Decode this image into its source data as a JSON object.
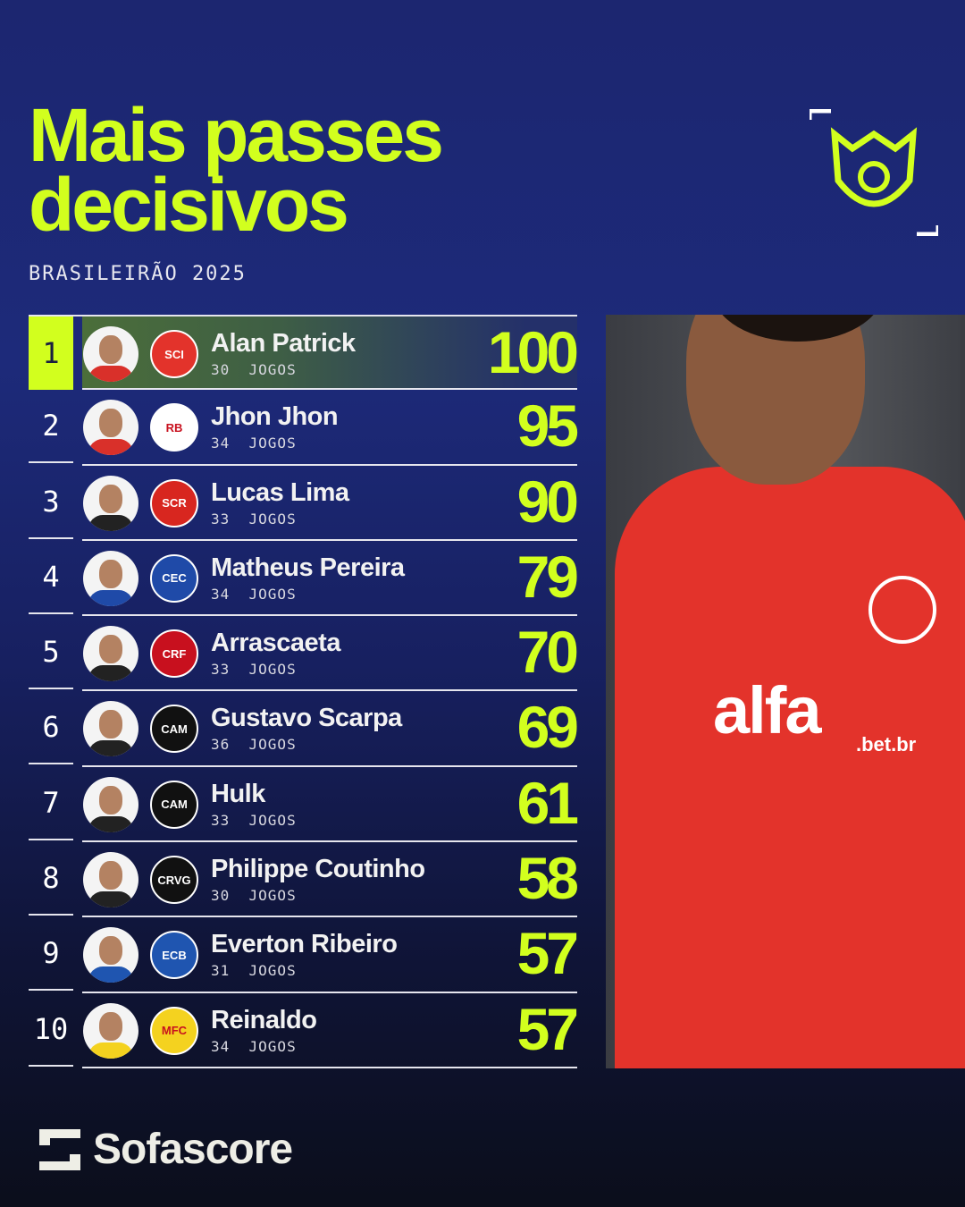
{
  "title_line1": "Mais passes",
  "title_line2": "decisivos",
  "subtitle": "BRASILEIRÃO 2025",
  "accent_color": "#d2ff1e",
  "rows": [
    {
      "rank": "1",
      "name": "Alan Patrick",
      "games": "30  JOGOS",
      "value": "100",
      "team_logo": "internacional",
      "team_color": "#e3332b",
      "shirt": "#d9302a"
    },
    {
      "rank": "2",
      "name": "Jhon Jhon",
      "games": "34  JOGOS",
      "value": "95",
      "team_logo": "red-bull-bragantino",
      "team_color": "#ffffff",
      "shirt": "#d9302a"
    },
    {
      "rank": "3",
      "name": "Lucas Lima",
      "games": "33  JOGOS",
      "value": "90",
      "team_logo": "sport-recife",
      "team_color": "#d8261f",
      "shirt": "#222222"
    },
    {
      "rank": "4",
      "name": "Matheus Pereira",
      "games": "34  JOGOS",
      "value": "79",
      "team_logo": "cruzeiro",
      "team_color": "#1f4aa8",
      "shirt": "#1f4aa8"
    },
    {
      "rank": "5",
      "name": "Arrascaeta",
      "games": "33  JOGOS",
      "value": "70",
      "team_logo": "flamengo",
      "team_color": "#c8101e",
      "shirt": "#222222"
    },
    {
      "rank": "6",
      "name": "Gustavo Scarpa",
      "games": "36  JOGOS",
      "value": "69",
      "team_logo": "atletico-mineiro",
      "team_color": "#111111",
      "shirt": "#222222"
    },
    {
      "rank": "7",
      "name": "Hulk",
      "games": "33  JOGOS",
      "value": "61",
      "team_logo": "atletico-mineiro",
      "team_color": "#111111",
      "shirt": "#222222"
    },
    {
      "rank": "8",
      "name": "Philippe Coutinho",
      "games": "30  JOGOS",
      "value": "58",
      "team_logo": "vasco",
      "team_color": "#111111",
      "shirt": "#222222"
    },
    {
      "rank": "9",
      "name": "Everton Ribeiro",
      "games": "31  JOGOS",
      "value": "57",
      "team_logo": "bahia",
      "team_color": "#1f55b0",
      "shirt": "#1f55b0"
    },
    {
      "rank": "10",
      "name": "Reinaldo",
      "games": "34  JOGOS",
      "value": "57",
      "team_logo": "mirassol",
      "team_color": "#f4d21f",
      "shirt": "#f4d21f"
    }
  ],
  "logo_text": {
    "internacional": "SCI",
    "red-bull-bragantino": "RB",
    "sport-recife": "SCR",
    "cruzeiro": "CEC",
    "flamengo": "CRF",
    "atletico-mineiro": "CAM",
    "vasco": "CRVG",
    "bahia": "ECB",
    "mirassol": "MFC"
  },
  "photo": {
    "sponsor": "alfa",
    "sponsor_sub": ".bet.br"
  },
  "brand": {
    "name": "Sofascore"
  },
  "league_logo": "brasileirao-icon"
}
